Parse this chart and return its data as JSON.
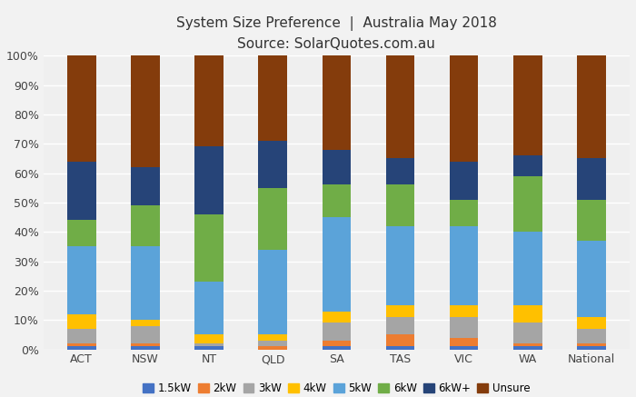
{
  "title": "System Size Preference  |  Australia May 2018",
  "subtitle": "Source: SolarQuotes.com.au",
  "categories": [
    "ACT",
    "NSW",
    "NT",
    "QLD",
    "SA",
    "TAS",
    "VIC",
    "WA",
    "National"
  ],
  "series": {
    "1.5kW": [
      1,
      1,
      1,
      0,
      1,
      1,
      1,
      1,
      1
    ],
    "2kW": [
      1,
      1,
      0,
      1,
      2,
      4,
      3,
      1,
      1
    ],
    "3kW": [
      5,
      6,
      1,
      2,
      6,
      6,
      7,
      7,
      5
    ],
    "4kW": [
      5,
      2,
      3,
      2,
      4,
      4,
      4,
      6,
      4
    ],
    "5kW": [
      23,
      25,
      18,
      29,
      32,
      27,
      27,
      25,
      26
    ],
    "6kW": [
      9,
      14,
      23,
      21,
      11,
      14,
      9,
      19,
      14
    ],
    "6kW+": [
      20,
      13,
      23,
      16,
      12,
      9,
      13,
      7,
      14
    ],
    "Unsure": [
      36,
      38,
      31,
      29,
      32,
      35,
      36,
      34,
      35
    ]
  },
  "colors": {
    "1.5kW": "#4472C4",
    "2kW": "#ED7D31",
    "3kW": "#A5A5A5",
    "4kW": "#FFC000",
    "5kW": "#5BA3D9",
    "6kW": "#70AD47",
    "6kW+": "#264478",
    "Unsure": "#843C0C"
  },
  "ylim": [
    0,
    100
  ],
  "ytick_labels": [
    "0%",
    "10%",
    "20%",
    "30%",
    "40%",
    "50%",
    "60%",
    "70%",
    "80%",
    "90%",
    "100%"
  ],
  "ytick_values": [
    0,
    10,
    20,
    30,
    40,
    50,
    60,
    70,
    80,
    90,
    100
  ],
  "background_color": "#F2F2F2",
  "plot_bg_color": "#EFEFEF",
  "grid_color": "#FFFFFF",
  "bar_width": 0.45,
  "figsize": [
    7.0,
    4.37
  ],
  "dpi": 100
}
